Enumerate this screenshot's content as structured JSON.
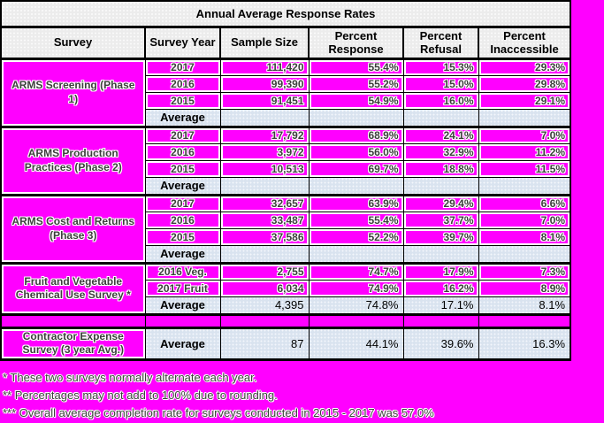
{
  "page": {
    "background_color": "#ff00ff",
    "accent_average_row_color": "#d9e3ef",
    "header_color": "#ececec"
  },
  "table": {
    "title": "Annual Average Response Rates",
    "columns": [
      "Survey",
      "Survey Year",
      "Sample Size",
      "Percent Response",
      "Percent Refusal",
      "Percent Inaccessible"
    ],
    "groups": [
      {
        "survey": "ARMS Screening (Phase 1)",
        "rows": [
          [
            "2017",
            "111,420",
            "55.4%",
            "15.3%",
            "29.3%"
          ],
          [
            "2016",
            "99,390",
            "55.2%",
            "15.0%",
            "29.8%"
          ],
          [
            "2015",
            "91,451",
            "54.9%",
            "16.0%",
            "29.1%"
          ]
        ],
        "average": [
          "Average",
          "",
          "",
          "",
          ""
        ],
        "spacer_before": false,
        "tall": false
      },
      {
        "survey": "ARMS Production Practices (Phase 2)",
        "rows": [
          [
            "2017",
            "17,792",
            "68.9%",
            "24.1%",
            "7.0%"
          ],
          [
            "2016",
            "3,972",
            "56.0%",
            "32.9%",
            "11.2%"
          ],
          [
            "2015",
            "10,513",
            "69.7%",
            "18.8%",
            "11.5%"
          ]
        ],
        "average": [
          "Average",
          "",
          "",
          "",
          ""
        ],
        "spacer_before": false,
        "tall": false
      },
      {
        "survey": "ARMS Cost and Returns (Phase 3)",
        "rows": [
          [
            "2017",
            "32,657",
            "63.9%",
            "29.4%",
            "6.6%"
          ],
          [
            "2016",
            "33,487",
            "55.4%",
            "37.7%",
            "7.0%"
          ],
          [
            "2015",
            "37,586",
            "52.2%",
            "39.7%",
            "8.1%"
          ]
        ],
        "average": [
          "Average",
          "",
          "",
          "",
          ""
        ],
        "spacer_before": false,
        "tall": false
      },
      {
        "survey": "Fruit and Vegetable Chemical Use Survey *",
        "rows": [
          [
            "2016 Veg.",
            "2,755",
            "74.7%",
            "17.9%",
            "7.3%"
          ],
          [
            "2017 Fruit",
            "6,034",
            "74.9%",
            "16.2%",
            "8.9%"
          ]
        ],
        "average": [
          "Average",
          "4,395",
          "74.8%",
          "17.1%",
          "8.1%"
        ],
        "spacer_before": false,
        "tall": false
      },
      {
        "survey": "Contractor Expense Survey (3 year Avg.)",
        "rows": [],
        "average": [
          "Average",
          "87",
          "44.1%",
          "39.6%",
          "16.3%"
        ],
        "spacer_before": true,
        "tall": true
      }
    ]
  },
  "footnotes": [
    "* These two surveys normally alternate each year.",
    "** Percentages may not add to 100% due to rounding.",
    "*** Overall average completion rate for surveys conducted in 2015 - 2017 was 57.0%"
  ]
}
